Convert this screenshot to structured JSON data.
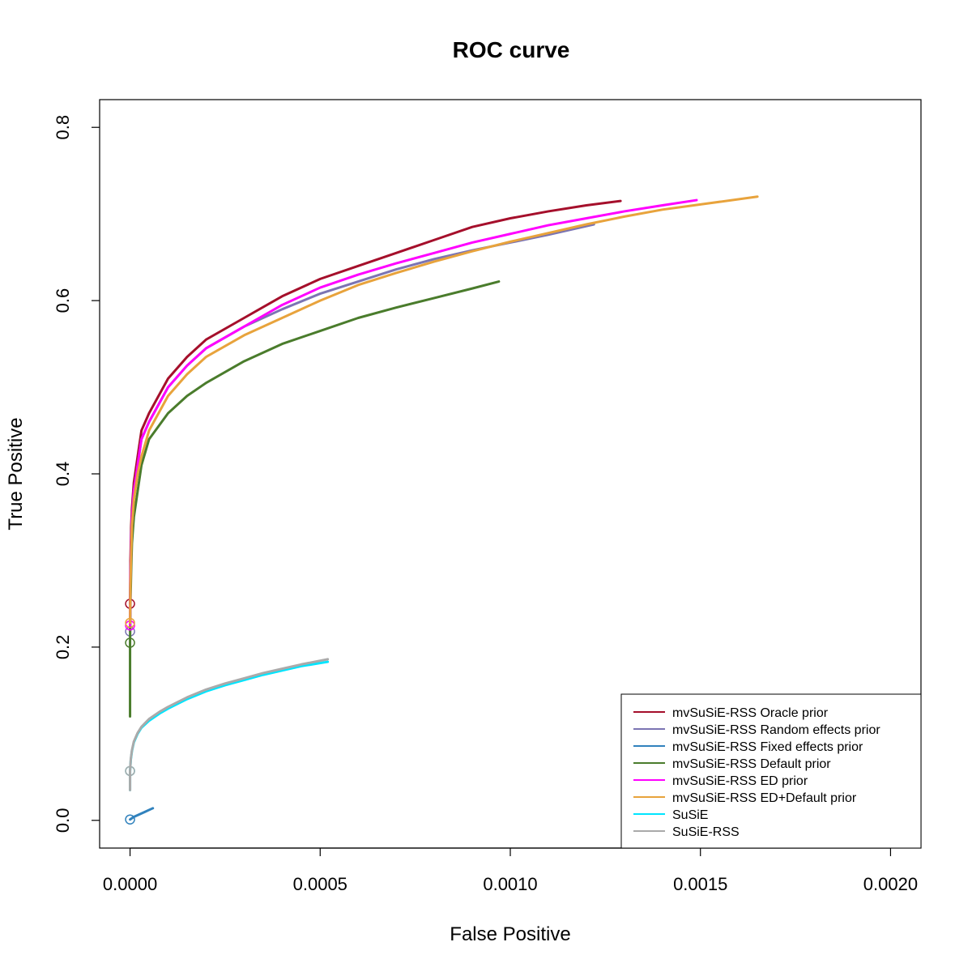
{
  "chart_data": {
    "type": "line",
    "title": "ROC curve",
    "xlabel": "False Positive",
    "ylabel": "True Positive",
    "xlim": [
      -8e-05,
      0.00208
    ],
    "ylim": [
      -0.032,
      0.832
    ],
    "xticks": [
      0.0,
      0.0005,
      0.001,
      0.0015,
      0.002
    ],
    "xtick_labels": [
      "0.0000",
      "0.0005",
      "0.0010",
      "0.0015",
      "0.0020"
    ],
    "yticks": [
      0.0,
      0.2,
      0.4,
      0.6,
      0.8
    ],
    "ytick_labels": [
      "0.0",
      "0.2",
      "0.4",
      "0.6",
      "0.8"
    ],
    "grid": false,
    "legend_position": "bottom-right",
    "series": [
      {
        "name": "mvSuSiE-RSS Oracle prior",
        "color": "#a50f2b",
        "start_point": [
          0,
          0.25
        ],
        "x": [
          0,
          1e-06,
          3e-06,
          5e-06,
          1e-05,
          2e-05,
          3e-05,
          5e-05,
          0.0001,
          0.00015,
          0.0002,
          0.0003,
          0.0004,
          0.0005,
          0.0006,
          0.0007,
          0.0008,
          0.0009,
          0.001,
          0.0011,
          0.0012,
          0.00129
        ],
        "y": [
          0.25,
          0.3,
          0.34,
          0.36,
          0.39,
          0.42,
          0.45,
          0.47,
          0.51,
          0.535,
          0.555,
          0.58,
          0.605,
          0.625,
          0.64,
          0.655,
          0.67,
          0.685,
          0.695,
          0.703,
          0.71,
          0.715
        ]
      },
      {
        "name": "mvSuSiE-RSS Random effects prior",
        "color": "#7b74b3",
        "start_point": [
          0,
          0.218
        ],
        "x": [
          0,
          1e-06,
          3e-06,
          5e-06,
          1e-05,
          2e-05,
          3e-05,
          5e-05,
          0.0001,
          0.00015,
          0.0002,
          0.0003,
          0.0004,
          0.0005,
          0.0006,
          0.0007,
          0.0008,
          0.0009,
          0.001,
          0.0011,
          0.00122
        ],
        "y": [
          0.218,
          0.28,
          0.32,
          0.35,
          0.38,
          0.41,
          0.44,
          0.46,
          0.5,
          0.525,
          0.545,
          0.57,
          0.59,
          0.608,
          0.622,
          0.636,
          0.648,
          0.658,
          0.667,
          0.676,
          0.688
        ]
      },
      {
        "name": "mvSuSiE-RSS Fixed effects prior",
        "color": "#3182bd",
        "start_point": [
          0,
          0.001
        ],
        "x": [
          0,
          1e-05,
          2e-05,
          3e-05,
          4e-05,
          5e-05,
          6e-05
        ],
        "y": [
          0.001,
          0.004,
          0.006,
          0.008,
          0.01,
          0.012,
          0.014
        ]
      },
      {
        "name": "mvSuSiE-RSS Default prior",
        "color": "#4a7c2c",
        "start_point": [
          0,
          0.205
        ],
        "x": [
          0,
          0,
          1e-06,
          3e-06,
          5e-06,
          1e-05,
          2e-05,
          3e-05,
          5e-05,
          0.0001,
          0.00015,
          0.0002,
          0.0003,
          0.0004,
          0.0005,
          0.0006,
          0.0007,
          0.0008,
          0.0009,
          0.00097
        ],
        "y": [
          0.12,
          0.205,
          0.25,
          0.29,
          0.32,
          0.35,
          0.38,
          0.41,
          0.44,
          0.47,
          0.49,
          0.505,
          0.53,
          0.55,
          0.565,
          0.58,
          0.592,
          0.603,
          0.614,
          0.622
        ]
      },
      {
        "name": "mvSuSiE-RSS ED prior",
        "color": "#ff00ff",
        "start_point": [
          0,
          0.225
        ],
        "x": [
          0,
          1e-06,
          3e-06,
          5e-06,
          1e-05,
          2e-05,
          3e-05,
          5e-05,
          0.0001,
          0.00015,
          0.0002,
          0.0003,
          0.0004,
          0.0005,
          0.0006,
          0.0007,
          0.0008,
          0.0009,
          0.001,
          0.0011,
          0.0012,
          0.0013,
          0.0014,
          0.00149
        ],
        "y": [
          0.225,
          0.28,
          0.32,
          0.35,
          0.38,
          0.41,
          0.44,
          0.46,
          0.5,
          0.525,
          0.545,
          0.57,
          0.595,
          0.615,
          0.63,
          0.643,
          0.655,
          0.667,
          0.677,
          0.687,
          0.695,
          0.703,
          0.71,
          0.716
        ]
      },
      {
        "name": "mvSuSiE-RSS ED+Default prior",
        "color": "#e8a33c",
        "start_point": [
          0,
          0.228
        ],
        "x": [
          0,
          1e-06,
          3e-06,
          5e-06,
          1e-05,
          2e-05,
          3e-05,
          5e-05,
          0.0001,
          0.00015,
          0.0002,
          0.0003,
          0.0004,
          0.0005,
          0.0006,
          0.0007,
          0.0008,
          0.0009,
          0.001,
          0.0011,
          0.0012,
          0.0013,
          0.0014,
          0.0015,
          0.00165
        ],
        "y": [
          0.228,
          0.27,
          0.31,
          0.34,
          0.37,
          0.4,
          0.42,
          0.45,
          0.49,
          0.515,
          0.535,
          0.56,
          0.58,
          0.6,
          0.618,
          0.632,
          0.645,
          0.657,
          0.668,
          0.678,
          0.688,
          0.697,
          0.705,
          0.711,
          0.72
        ]
      },
      {
        "name": "SuSiE",
        "color": "#00e5ff",
        "start_point": [
          0,
          0.057
        ],
        "x": [
          0,
          0,
          2e-06,
          5e-06,
          1e-05,
          2e-05,
          3e-05,
          5e-05,
          8e-05,
          0.0001,
          0.00015,
          0.0002,
          0.00025,
          0.0003,
          0.00035,
          0.0004,
          0.00045,
          0.00052
        ],
        "y": [
          0.035,
          0.057,
          0.07,
          0.08,
          0.09,
          0.1,
          0.107,
          0.115,
          0.124,
          0.129,
          0.14,
          0.149,
          0.156,
          0.162,
          0.168,
          0.173,
          0.178,
          0.183
        ]
      },
      {
        "name": "SuSiE-RSS",
        "color": "#aaaaaa",
        "start_point": [
          0,
          0.057
        ],
        "x": [
          0,
          0,
          2e-06,
          5e-06,
          1e-05,
          2e-05,
          3e-05,
          5e-05,
          8e-05,
          0.0001,
          0.00015,
          0.0002,
          0.00025,
          0.0003,
          0.00035,
          0.0004,
          0.00045,
          0.00052
        ],
        "y": [
          0.035,
          0.057,
          0.071,
          0.081,
          0.091,
          0.101,
          0.108,
          0.117,
          0.126,
          0.131,
          0.142,
          0.151,
          0.158,
          0.164,
          0.17,
          0.175,
          0.18,
          0.186
        ]
      }
    ]
  }
}
